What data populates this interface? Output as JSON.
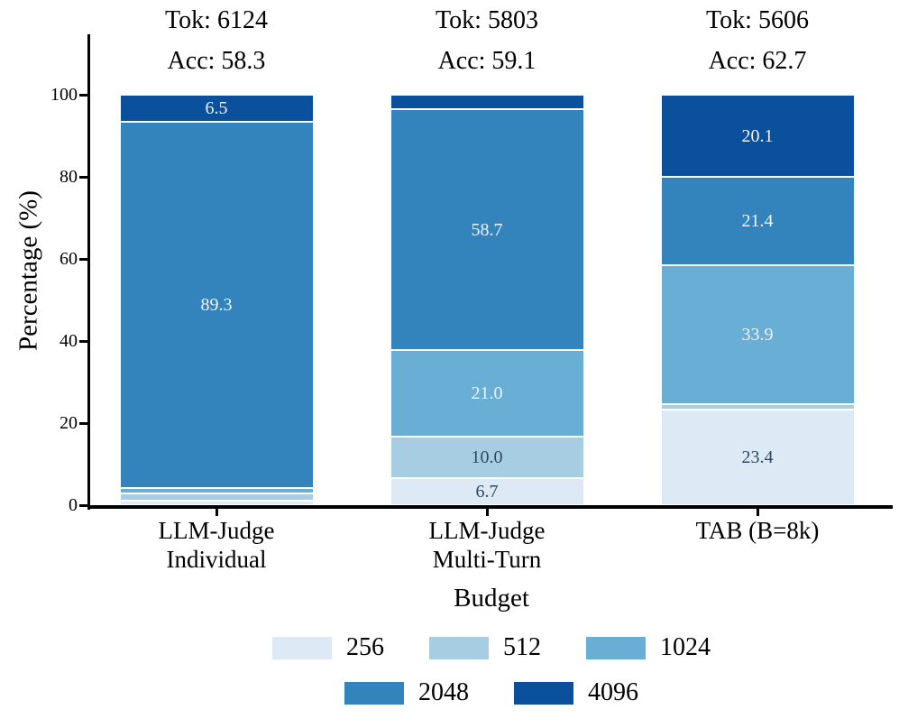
{
  "chart_data": {
    "type": "bar",
    "stacked": true,
    "orientation": "vertical",
    "xlabel": "Budget",
    "ylabel": "Percentage (%)",
    "ylim": [
      0,
      115
    ],
    "y_ticks": [
      0,
      20,
      40,
      60,
      80,
      100
    ],
    "grid": false,
    "categories": [
      "LLM-Judge\nIndividual",
      "LLM-Judge\nMulti-Turn",
      "TAB (B=8k)"
    ],
    "annotations": [
      {
        "tok": "Tok: 6124",
        "acc": "Acc: 58.3"
      },
      {
        "tok": "Tok: 5803",
        "acc": "Acc: 59.1"
      },
      {
        "tok": "Tok: 5606",
        "acc": "Acc: 62.7"
      }
    ],
    "series": [
      {
        "name": "256",
        "color": "#dde9f5",
        "label_color": "#2c4a63",
        "values": [
          1.1,
          6.7,
          23.4
        ]
      },
      {
        "name": "512",
        "color": "#a7cde3",
        "label_color": "#2c4a63",
        "values": [
          1.8,
          10.0,
          1.2
        ]
      },
      {
        "name": "1024",
        "color": "#69aed5",
        "label_color": "#eef2f6",
        "values": [
          1.3,
          21.0,
          33.9
        ]
      },
      {
        "name": "2048",
        "color": "#3383bd",
        "label_color": "#eef2f6",
        "values": [
          89.3,
          58.7,
          21.4
        ]
      },
      {
        "name": "4096",
        "color": "#0b509c",
        "label_color": "#eef2f6",
        "values": [
          6.5,
          3.6,
          20.1
        ]
      }
    ],
    "label_min_percent": 5,
    "legend": {
      "position": "bottom",
      "rows": [
        [
          "256",
          "512",
          "1024"
        ],
        [
          "2048",
          "4096"
        ]
      ]
    }
  }
}
